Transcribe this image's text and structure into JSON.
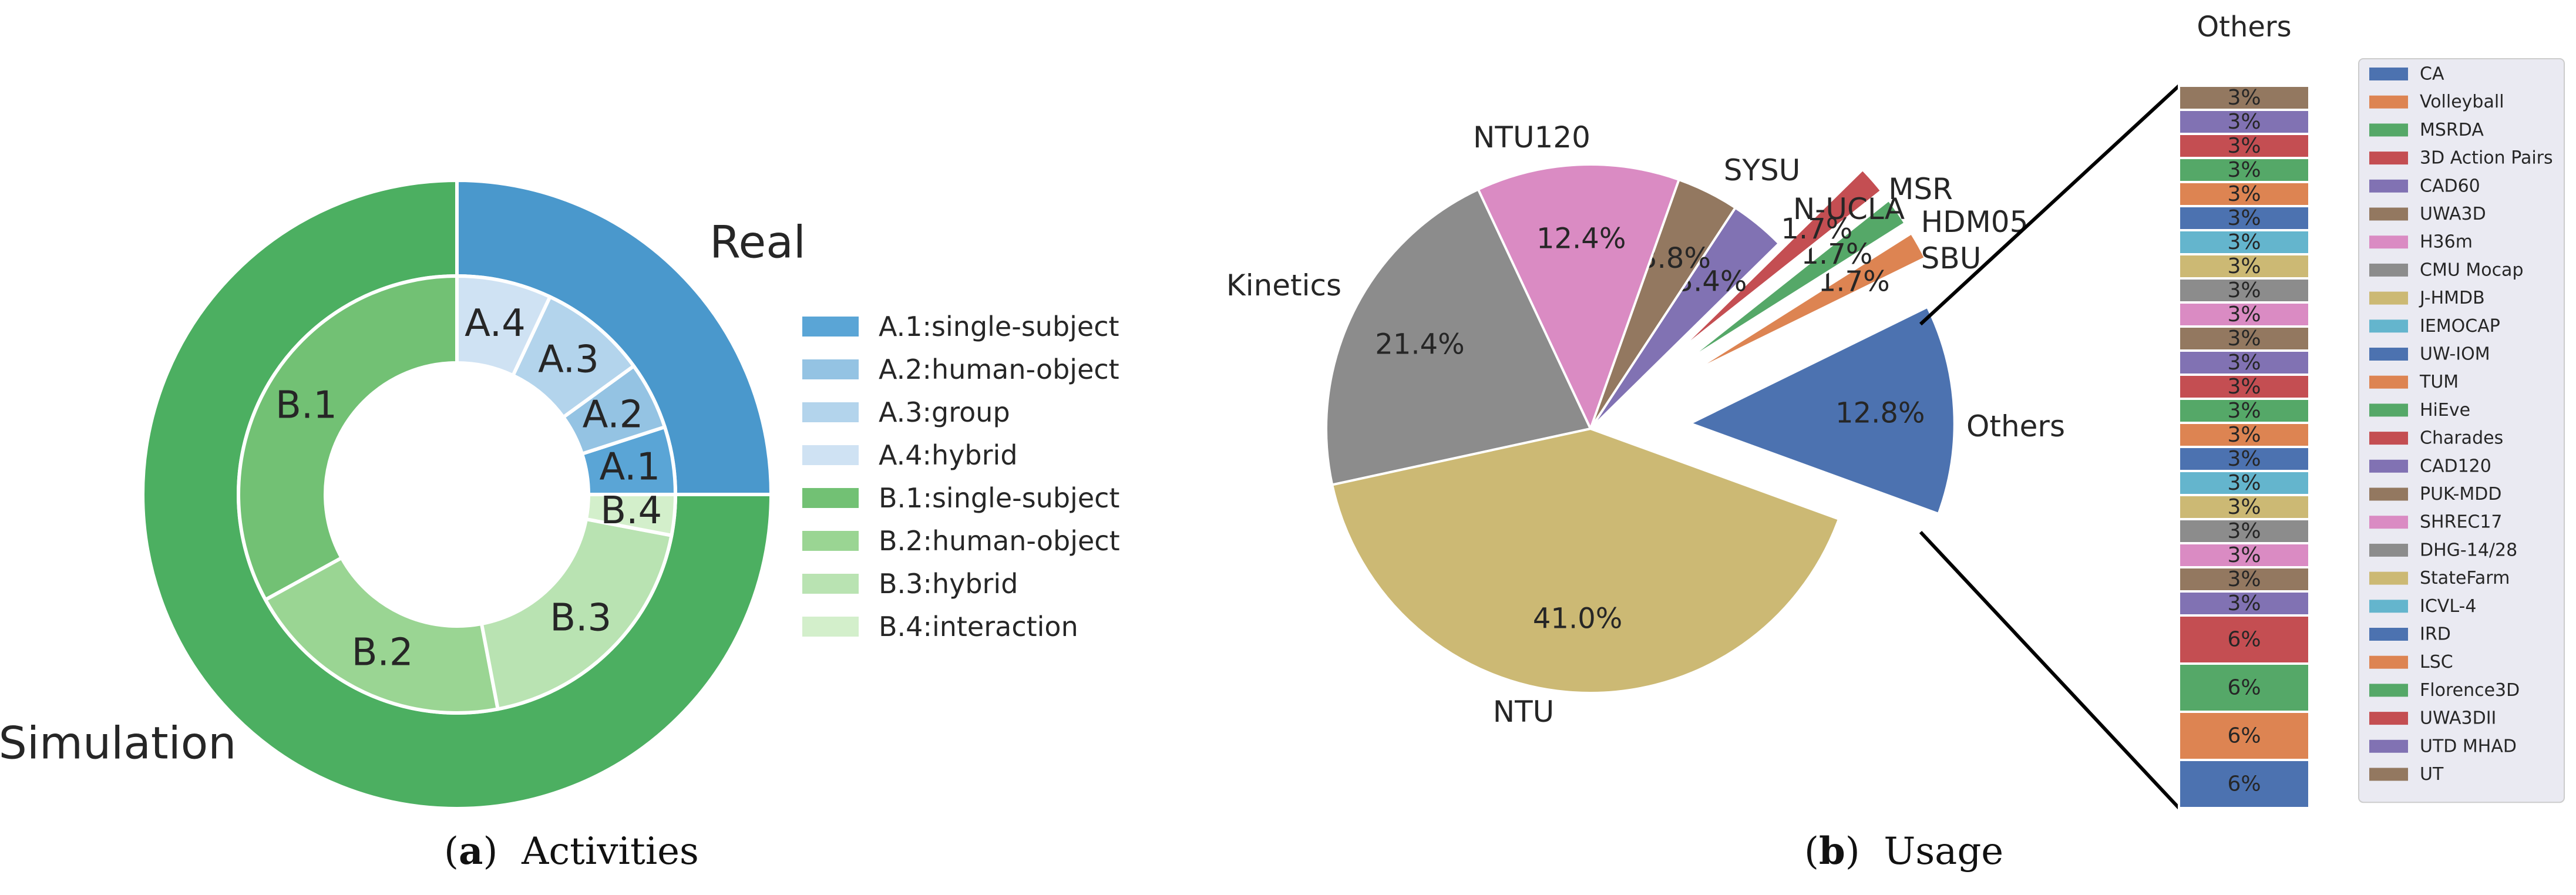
{
  "captions": {
    "a_letter": "a",
    "a_text": "Activities",
    "b_letter": "b",
    "b_text": "Usage"
  },
  "chart_data": [
    {
      "type": "pie",
      "subtype": "nested-donut",
      "caption": "(a) Activities",
      "outer": [
        {
          "label": "Real",
          "value": 25,
          "color": "#4a98cc"
        },
        {
          "label": "Simulation",
          "value": 75,
          "color": "#4caf61"
        }
      ],
      "inner": [
        {
          "label": "A.1",
          "legend": "A.1:single-subject",
          "value": 5,
          "color": "#5aa5d6"
        },
        {
          "label": "A.2",
          "legend": "A.2:human-object",
          "value": 5,
          "color": "#94c3e3"
        },
        {
          "label": "A.3",
          "legend": "A.3:group",
          "value": 8,
          "color": "#b3d4ec"
        },
        {
          "label": "A.4",
          "legend": "A.4:hybrid",
          "value": 7,
          "color": "#cfe2f3"
        },
        {
          "label": "B.1",
          "legend": "B.1:single-subject",
          "value": 33,
          "color": "#72c174"
        },
        {
          "label": "B.2",
          "legend": "B.2:human-object",
          "value": 20,
          "color": "#9ad593"
        },
        {
          "label": "B.3",
          "legend": "B.3:hybrid",
          "value": 19,
          "color": "#b9e3b2"
        },
        {
          "label": "B.4",
          "legend": "B.4:interaction",
          "value": 3,
          "color": "#d3efcb"
        }
      ],
      "legend_position": "right"
    },
    {
      "type": "pie",
      "subtype": "exploded-pie-with-breakdown-bar",
      "caption": "(b) Usage",
      "slices": [
        {
          "label": "Others",
          "value": 12.8,
          "pct": "12.8%",
          "color": "#4c72b0",
          "exploded": true
        },
        {
          "label": "SBU",
          "value": 1.7,
          "pct": "1.7%",
          "color": "#dd8452",
          "exploded": true
        },
        {
          "label": "HDM05",
          "value": 1.7,
          "pct": "1.7%",
          "color": "#55a868",
          "exploded": true
        },
        {
          "label": "MSR",
          "value": 1.7,
          "pct": "1.7%",
          "color": "#c44e52",
          "exploded": true
        },
        {
          "label": "N-UCLA",
          "value": 3.4,
          "pct": "3.4%",
          "color": "#8172b3",
          "exploded": false
        },
        {
          "label": "SYSU",
          "value": 3.8,
          "pct": "3.8%",
          "color": "#937860",
          "exploded": false
        },
        {
          "label": "NTU120",
          "value": 12.4,
          "pct": "12.4%",
          "color": "#da8bc3",
          "exploded": false
        },
        {
          "label": "Kinetics",
          "value": 21.4,
          "pct": "21.4%",
          "color": "#8c8c8c",
          "exploded": false
        },
        {
          "label": "NTU",
          "value": 41.0,
          "pct": "41.0%",
          "color": "#ccb974",
          "exploded": false
        }
      ],
      "breakdown": {
        "title": "Others",
        "items": [
          {
            "label": "UT",
            "pct": "3%",
            "value": 3,
            "color": "#937860"
          },
          {
            "label": "UTD MHAD",
            "pct": "3%",
            "value": 3,
            "color": "#8172b3"
          },
          {
            "label": "UWA3DII",
            "pct": "3%",
            "value": 3,
            "color": "#c44e52"
          },
          {
            "label": "Florence3D",
            "pct": "3%",
            "value": 3,
            "color": "#55a868"
          },
          {
            "label": "LSC",
            "pct": "3%",
            "value": 3,
            "color": "#dd8452"
          },
          {
            "label": "IRD",
            "pct": "3%",
            "value": 3,
            "color": "#4c72b0"
          },
          {
            "label": "ICVL-4",
            "pct": "3%",
            "value": 3,
            "color": "#64b5cd"
          },
          {
            "label": "StateFarm",
            "pct": "3%",
            "value": 3,
            "color": "#ccb974"
          },
          {
            "label": "DHG-14/28",
            "pct": "3%",
            "value": 3,
            "color": "#8c8c8c"
          },
          {
            "label": "SHREC17",
            "pct": "3%",
            "value": 3,
            "color": "#da8bc3"
          },
          {
            "label": "PUK-MDD",
            "pct": "3%",
            "value": 3,
            "color": "#937860"
          },
          {
            "label": "CAD120",
            "pct": "3%",
            "value": 3,
            "color": "#8172b3"
          },
          {
            "label": "Charades",
            "pct": "3%",
            "value": 3,
            "color": "#c44e52"
          },
          {
            "label": "HiEve",
            "pct": "3%",
            "value": 3,
            "color": "#55a868"
          },
          {
            "label": "TUM",
            "pct": "3%",
            "value": 3,
            "color": "#dd8452"
          },
          {
            "label": "UW-IOM",
            "pct": "3%",
            "value": 3,
            "color": "#4c72b0"
          },
          {
            "label": "IEMOCAP",
            "pct": "3%",
            "value": 3,
            "color": "#64b5cd"
          },
          {
            "label": "J-HMDB",
            "pct": "3%",
            "value": 3,
            "color": "#ccb974"
          },
          {
            "label": "CMU Mocap",
            "pct": "3%",
            "value": 3,
            "color": "#8c8c8c"
          },
          {
            "label": "H36m",
            "pct": "3%",
            "value": 3,
            "color": "#da8bc3"
          },
          {
            "label": "UWA3D",
            "pct": "3%",
            "value": 3,
            "color": "#937860"
          },
          {
            "label": "CAD60",
            "pct": "3%",
            "value": 3,
            "color": "#8172b3"
          },
          {
            "label": "3D Action Pairs",
            "pct": "6%",
            "value": 6,
            "color": "#c44e52"
          },
          {
            "label": "MSRDA",
            "pct": "6%",
            "value": 6,
            "color": "#55a868"
          },
          {
            "label": "Volleyball",
            "pct": "6%",
            "value": 6,
            "color": "#dd8452"
          },
          {
            "label": "CA",
            "pct": "6%",
            "value": 6,
            "color": "#4c72b0"
          }
        ],
        "legend_position": "right",
        "legend_background": "#eaeaf2"
      }
    }
  ]
}
